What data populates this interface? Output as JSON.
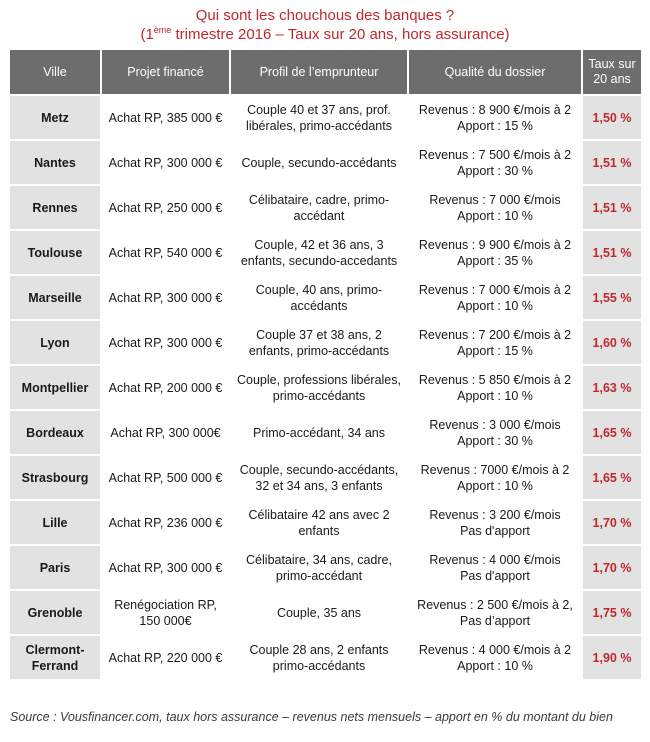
{
  "title": {
    "line1": "Qui sont les chouchous des banques ?",
    "line2_prefix": "(1",
    "line2_sup": "ème",
    "line2_suffix": " trimestre 2016 – Taux sur 20 ans, hors assurance)"
  },
  "table": {
    "headers": [
      "Ville",
      "Projet financé",
      "Profil de l’emprunteur",
      "Qualité du dossier",
      "Taux sur 20 ans"
    ],
    "rows": [
      {
        "ville": "Metz",
        "projet": "Achat RP, 385 000 €",
        "profil": "Couple 40 et 37 ans, prof. libérales, primo-accédants",
        "dossier": "Revenus : 8 900 €/mois à 2\nApport : 15 %",
        "taux": "1,50 %"
      },
      {
        "ville": "Nantes",
        "projet": "Achat RP, 300 000 €",
        "profil": "Couple, secundo-accédants",
        "dossier": "Revenus : 7 500 €/mois à 2\nApport : 30 %",
        "taux": "1,51 %"
      },
      {
        "ville": "Rennes",
        "projet": "Achat RP, 250 000 €",
        "profil": "Célibataire, cadre, primo-accédant",
        "dossier": "Revenus : 7 000 €/mois\nApport : 10 %",
        "taux": "1,51 %"
      },
      {
        "ville": "Toulouse",
        "projet": "Achat RP,  540 000 €",
        "profil": "Couple, 42 et 36 ans, 3 enfants, secundo-accedants",
        "dossier": "Revenus : 9 900 €/mois à 2\nApport : 35 %",
        "taux": "1,51 %"
      },
      {
        "ville": "Marseille",
        "projet": "Achat RP, 300 000 €",
        "profil": "Couple, 40 ans, primo-accédants",
        "dossier": "Revenus : 7 000 €/mois à 2\nApport : 10 %",
        "taux": "1,55 %"
      },
      {
        "ville": "Lyon",
        "projet": "Achat RP, 300 000 €",
        "profil": "Couple 37 et 38 ans, 2 enfants,  primo-accédants",
        "dossier": "Revenus : 7 200 €/mois à 2\nApport : 15 %",
        "taux": "1,60 %"
      },
      {
        "ville": "Montpellier",
        "projet": "Achat RP, 200 000 €",
        "profil": "Couple, professions libérales, primo-accédants",
        "dossier": "Revenus : 5 850 €/mois à 2\nApport : 10 %",
        "taux": "1,63 %"
      },
      {
        "ville": "Bordeaux",
        "projet": "Achat RP, 300 000€",
        "profil": "Primo-accédant, 34 ans",
        "dossier": "Revenus : 3 000 €/mois\nApport : 30 %",
        "taux": "1,65 %"
      },
      {
        "ville": "Strasbourg",
        "projet": "Achat RP, 500 000 €",
        "profil": "Couple, secundo-accédants, 32 et 34 ans, 3 enfants",
        "dossier": "Revenus : 7000 €/mois à 2\nApport : 10 %",
        "taux": "1,65 %"
      },
      {
        "ville": "Lille",
        "projet": "Achat RP, 236 000 €",
        "profil": "Célibataire 42 ans avec 2 enfants",
        "dossier": "Revenus : 3 200 €/mois\nPas d'apport",
        "taux": "1,70 %"
      },
      {
        "ville": "Paris",
        "projet": "Achat RP, 300 000 €",
        "profil": "Célibataire, 34 ans, cadre, primo-accédant",
        "dossier": "Revenus : 4 000 €/mois\nPas d'apport",
        "taux": "1,70 %"
      },
      {
        "ville": "Grenoble",
        "projet": "Renégociation RP, 150 000€",
        "profil": "Couple, 35 ans",
        "dossier": "Revenus : 2 500 €/mois à 2,\nPas d’apport",
        "taux": "1,75 %"
      },
      {
        "ville": "Clermont-Ferrand",
        "projet": "Achat RP, 220 000 €",
        "profil": "Couple 28 ans, 2 enfants primo-accédants",
        "dossier": "Revenus : 4 000 €/mois à 2\nApport : 10 %",
        "taux": "1,90 %"
      }
    ]
  },
  "source": "Source : Vousfinancer.com, taux hors assurance – revenus nets mensuels – apport en % du montant du bien",
  "colors": {
    "accent": "#c0282d",
    "header_bg": "#6d6d6d",
    "shaded": "#e2e2e2"
  }
}
